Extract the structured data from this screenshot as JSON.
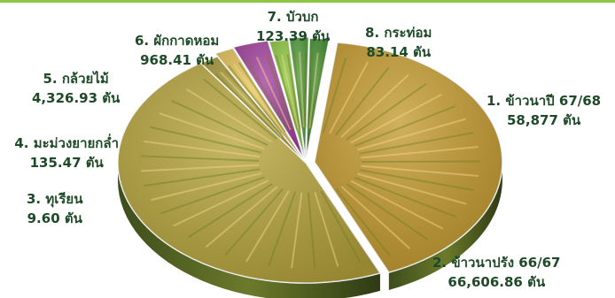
{
  "colors": {
    "accent": "#8dc63f",
    "label_text": "#1f4a27"
  },
  "chart_data": {
    "type": "pie",
    "title": "",
    "unit": "ตัน",
    "style": "3d",
    "slices": [
      {
        "name": "1. ข้าวนาปี 67/68",
        "value": 58877,
        "value_text": "58,877 ตัน",
        "color": "#c49a2e",
        "texture": "rice-ears-icon"
      },
      {
        "name": "2. ข้าวนาปรัง 66/67",
        "value": 66606.86,
        "value_text": "66,606.86 ตัน",
        "color": "#b7a43c",
        "texture": "rice-field-icon"
      },
      {
        "name": "3. ทุเรียน",
        "value": 9.6,
        "value_text": "9.60 ตัน",
        "color": "#a99a3a",
        "texture": "durian-icon"
      },
      {
        "name": "4. มะม่วงยายกล่ำ",
        "value": 135.47,
        "value_text": "135.47 ตัน",
        "color": "#e5c25a",
        "texture": "mango-icon"
      },
      {
        "name": "5. กล้วยไม้",
        "value": 4326.93,
        "value_text": "4,326.93 ตัน",
        "color": "#a23f9c",
        "texture": "orchid-icon"
      },
      {
        "name": "6. ผักกาดหอม",
        "value": 968.41,
        "value_text": "968.41 ตัน",
        "color": "#8cc63f",
        "texture": "lettuce-icon"
      },
      {
        "name": "7. บัวบก",
        "value": 123.39,
        "value_text": "123.39 ตัน",
        "color": "#4f9a3a",
        "texture": "pennywort-icon"
      },
      {
        "name": "8. กระท่อม",
        "value": 83.14,
        "value_text": "83.14 ตัน",
        "color": "#3e8a2c",
        "texture": "kratom-leaf-icon"
      }
    ]
  }
}
